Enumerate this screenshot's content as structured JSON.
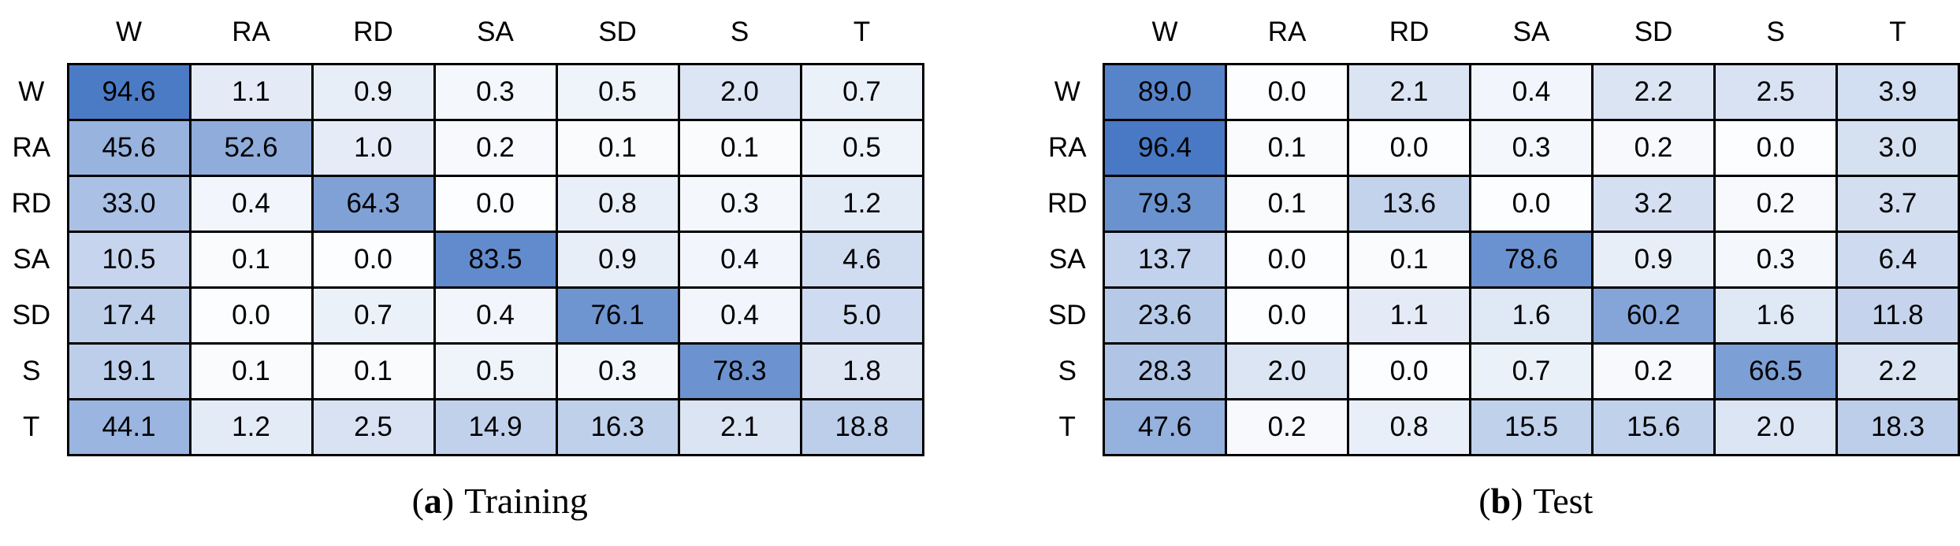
{
  "chart_data": [
    {
      "type": "heatmap",
      "id": "training",
      "caption": {
        "open": "(",
        "letter": "a",
        "close": ")",
        "text": "Training"
      },
      "x_labels": [
        "W",
        "RA",
        "RD",
        "SA",
        "SD",
        "S",
        "T"
      ],
      "y_labels": [
        "W",
        "RA",
        "RD",
        "SA",
        "SD",
        "S",
        "T"
      ],
      "values": [
        [
          94.6,
          1.1,
          0.9,
          0.3,
          0.5,
          2.0,
          0.7
        ],
        [
          45.6,
          52.6,
          1.0,
          0.2,
          0.1,
          0.1,
          0.5
        ],
        [
          33.0,
          0.4,
          64.3,
          0.0,
          0.8,
          0.3,
          1.2
        ],
        [
          10.5,
          0.1,
          0.0,
          83.5,
          0.9,
          0.4,
          4.6
        ],
        [
          17.4,
          0.0,
          0.7,
          0.4,
          76.1,
          0.4,
          5.0
        ],
        [
          19.1,
          0.1,
          0.1,
          0.5,
          0.3,
          78.3,
          1.8
        ],
        [
          44.1,
          1.2,
          2.5,
          14.9,
          16.3,
          2.1,
          18.8
        ]
      ],
      "value_range": [
        0,
        100
      ],
      "legend": "none",
      "grid": "black cell borders"
    },
    {
      "type": "heatmap",
      "id": "test",
      "caption": {
        "open": "(",
        "letter": "b",
        "close": ")",
        "text": "Test"
      },
      "x_labels": [
        "W",
        "RA",
        "RD",
        "SA",
        "SD",
        "S",
        "T"
      ],
      "y_labels": [
        "W",
        "RA",
        "RD",
        "SA",
        "SD",
        "S",
        "T"
      ],
      "values": [
        [
          89.0,
          0.0,
          2.1,
          0.4,
          2.2,
          2.5,
          3.9
        ],
        [
          96.4,
          0.1,
          0.0,
          0.3,
          0.2,
          0.0,
          3.0
        ],
        [
          79.3,
          0.1,
          13.6,
          0.0,
          3.2,
          0.2,
          3.7
        ],
        [
          13.7,
          0.0,
          0.1,
          78.6,
          0.9,
          0.3,
          6.4
        ],
        [
          23.6,
          0.0,
          1.1,
          1.6,
          60.2,
          1.6,
          11.8
        ],
        [
          28.3,
          2.0,
          0.0,
          0.7,
          0.2,
          66.5,
          2.2
        ],
        [
          47.6,
          0.2,
          0.8,
          15.5,
          15.6,
          2.0,
          18.3
        ]
      ],
      "value_range": [
        0,
        100
      ],
      "legend": "none",
      "grid": "black cell borders"
    }
  ],
  "style": {
    "heatmap_min_color": "#FFFFFF",
    "heatmap_max_color": "#3A6EC0",
    "cell_border_color": "#000000",
    "text_color": "#000000",
    "background_color": "#FFFFFF",
    "ramp_stops": [
      [
        0,
        0.015
      ],
      [
        0.5,
        0.08
      ],
      [
        1,
        0.13
      ],
      [
        2,
        0.18
      ],
      [
        3,
        0.215
      ],
      [
        5,
        0.245
      ],
      [
        10,
        0.285
      ],
      [
        15,
        0.315
      ],
      [
        20,
        0.345
      ],
      [
        30,
        0.41
      ],
      [
        45,
        0.52
      ],
      [
        55,
        0.585
      ],
      [
        65,
        0.655
      ],
      [
        80,
        0.76
      ],
      [
        90,
        0.865
      ],
      [
        97,
        0.93
      ],
      [
        100,
        0.96
      ]
    ]
  }
}
